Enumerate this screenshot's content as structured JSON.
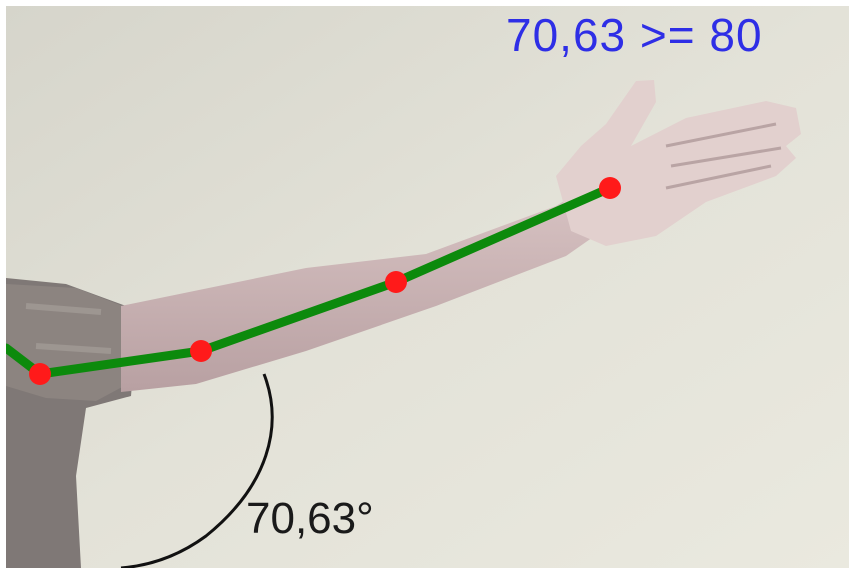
{
  "overlay": {
    "threshold_text": "70,63 >= 80",
    "angle_text": "70,63°"
  },
  "colors": {
    "threshold_text": "#2e2ee6",
    "skeleton_line": "#0c8a0c",
    "joint_points": "#ff1a1a",
    "angle_arc": "#111111"
  },
  "joints": [
    "shoulder",
    "elbow",
    "wrist",
    "hand"
  ]
}
